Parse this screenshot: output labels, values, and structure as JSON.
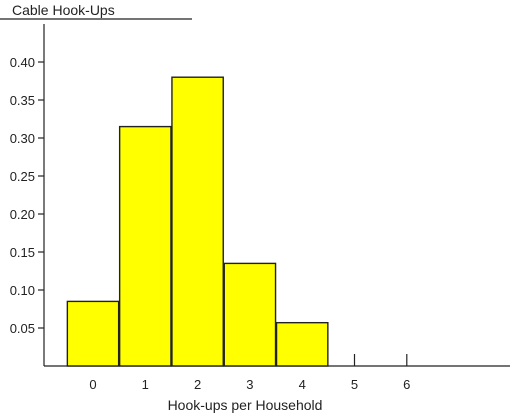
{
  "chart_data": {
    "type": "bar",
    "title": "Cable Hook-Ups",
    "xlabel": "Hook-ups per Household",
    "ylabel": "",
    "categories": [
      "0",
      "1",
      "2",
      "3",
      "4"
    ],
    "values": [
      0.085,
      0.315,
      0.38,
      0.135,
      0.057
    ],
    "x_ticks": [
      "0",
      "1",
      "2",
      "3",
      "4",
      "5",
      "6"
    ],
    "y_ticks": [
      "0.05",
      "0.10",
      "0.15",
      "0.20",
      "0.25",
      "0.30",
      "0.35",
      "0.40"
    ],
    "ylim": [
      0,
      0.42
    ],
    "xlim": [
      -0.5,
      7.5
    ],
    "grid": false,
    "bar_color": "#ffff00",
    "bar_edge_color": "#222222"
  }
}
